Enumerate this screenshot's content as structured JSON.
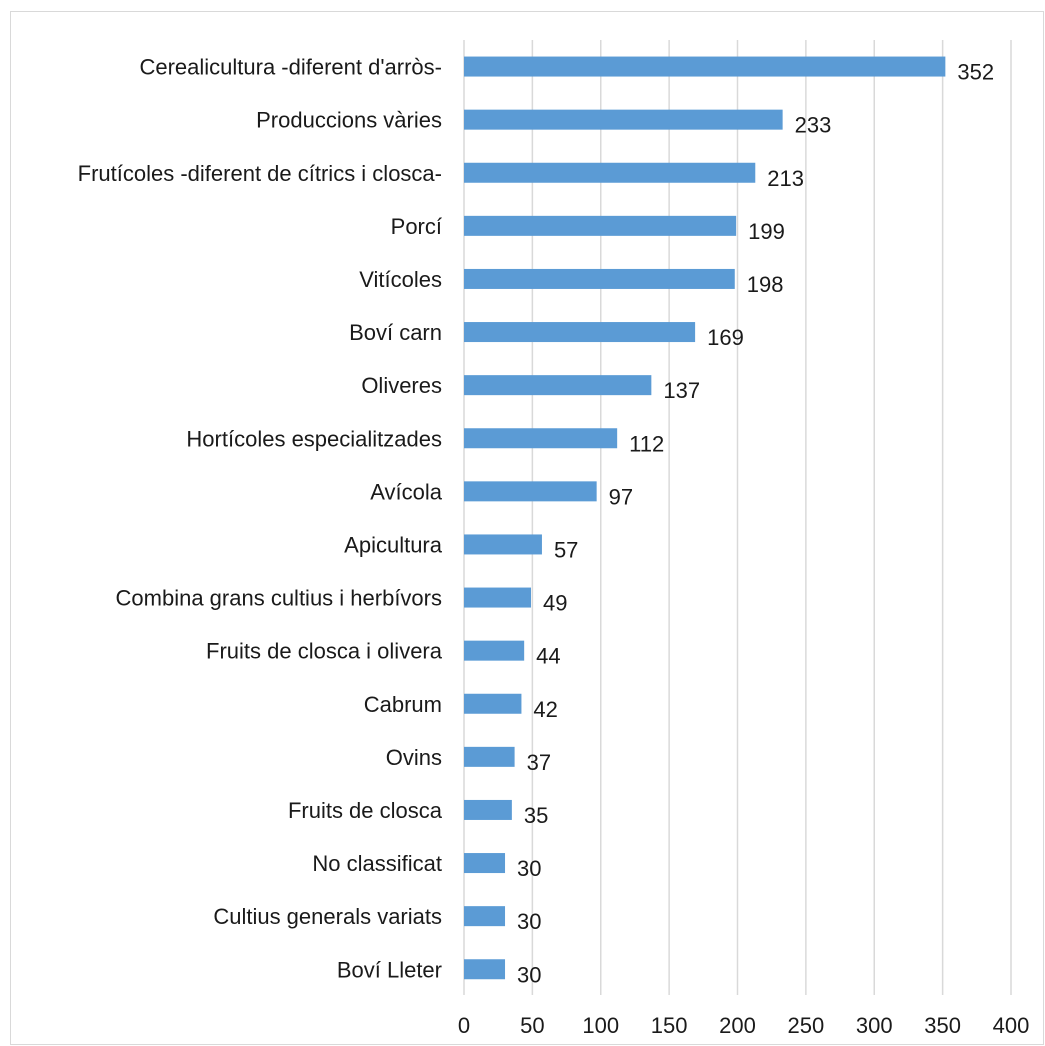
{
  "chart_data": {
    "type": "bar",
    "orientation": "horizontal",
    "title": "",
    "xlabel": "",
    "ylabel": "",
    "categories": [
      "Cerealicultura -diferent d'arròs-",
      "Produccions vàries",
      "Frutícoles -diferent de cítrics i closca-",
      "Porcí",
      "Vitícoles",
      "Boví carn",
      "Oliveres",
      "Hortícoles especialitzades",
      "Avícola",
      "Apicultura",
      "Combina grans cultius i herbívors",
      "Fruits de closca i olivera",
      "Cabrum",
      "Ovins",
      "Fruits de closca",
      "No classificat",
      "Cultius generals variats",
      "Boví Lleter"
    ],
    "values": [
      352,
      233,
      213,
      199,
      198,
      169,
      137,
      112,
      97,
      57,
      49,
      44,
      42,
      37,
      35,
      30,
      30,
      30
    ],
    "value_labels": [
      "352",
      "233",
      "213",
      "199",
      "198",
      "169",
      "137",
      "112",
      "97",
      "57",
      "49",
      "44",
      "42",
      "37",
      "35",
      "30",
      "30",
      "30"
    ],
    "xlim": [
      0,
      400
    ],
    "xticks": [
      0,
      50,
      100,
      150,
      200,
      250,
      300,
      350,
      400
    ],
    "xtick_labels": [
      "0",
      "50",
      "100",
      "150",
      "200",
      "250",
      "300",
      "350",
      "400"
    ],
    "grid": "vertical",
    "legend": "none",
    "bar_color": "#5b9bd5",
    "grid_color": "#d9d9d9"
  }
}
